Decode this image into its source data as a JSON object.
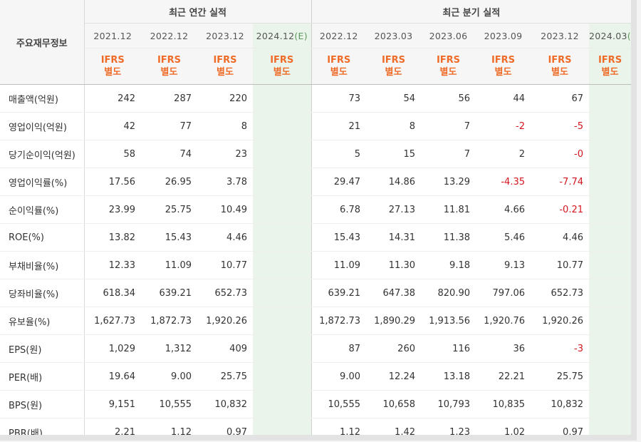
{
  "header": {
    "row_label": "주요재무정보",
    "annual_group": "최근 연간 실적",
    "quarter_group": "최근 분기 실적",
    "annual_periods": [
      {
        "label": "2021.12",
        "est": ""
      },
      {
        "label": "2022.12",
        "est": ""
      },
      {
        "label": "2023.12",
        "est": ""
      },
      {
        "label": "2024.12",
        "est": "(E)"
      }
    ],
    "quarter_periods": [
      {
        "label": "2022.12",
        "est": ""
      },
      {
        "label": "2023.03",
        "est": ""
      },
      {
        "label": "2023.06",
        "est": ""
      },
      {
        "label": "2023.09",
        "est": ""
      },
      {
        "label": "2023.12",
        "est": ""
      },
      {
        "label": "2024.03",
        "est": "(E"
      }
    ],
    "ifrs_line1": "IFRS",
    "ifrs_line2": "별도"
  },
  "rows": [
    {
      "label": "매출액(억원)",
      "annual": [
        "242",
        "287",
        "220",
        ""
      ],
      "quarter": [
        "73",
        "54",
        "56",
        "44",
        "67",
        ""
      ]
    },
    {
      "label": "영업이익(억원)",
      "annual": [
        "42",
        "77",
        "8",
        ""
      ],
      "quarter": [
        "21",
        "8",
        "7",
        "-2",
        "-5",
        ""
      ]
    },
    {
      "label": "당기순이익(억원)",
      "annual": [
        "58",
        "74",
        "23",
        ""
      ],
      "quarter": [
        "5",
        "15",
        "7",
        "2",
        "-0",
        ""
      ]
    },
    {
      "label": "영업이익률(%)",
      "annual": [
        "17.56",
        "26.95",
        "3.78",
        ""
      ],
      "quarter": [
        "29.47",
        "14.86",
        "13.29",
        "-4.35",
        "-7.74",
        ""
      ]
    },
    {
      "label": "순이익률(%)",
      "annual": [
        "23.99",
        "25.75",
        "10.49",
        ""
      ],
      "quarter": [
        "6.78",
        "27.13",
        "11.81",
        "4.66",
        "-0.21",
        ""
      ]
    },
    {
      "label": "ROE(%)",
      "annual": [
        "13.82",
        "15.43",
        "4.46",
        ""
      ],
      "quarter": [
        "15.43",
        "14.31",
        "11.38",
        "5.46",
        "4.46",
        ""
      ]
    },
    {
      "label": "부채비율(%)",
      "annual": [
        "12.33",
        "11.09",
        "10.77",
        ""
      ],
      "quarter": [
        "11.09",
        "11.30",
        "9.18",
        "9.13",
        "10.77",
        ""
      ]
    },
    {
      "label": "당좌비율(%)",
      "annual": [
        "618.34",
        "639.21",
        "652.73",
        ""
      ],
      "quarter": [
        "639.21",
        "647.38",
        "820.90",
        "797.06",
        "652.73",
        ""
      ]
    },
    {
      "label": "유보율(%)",
      "annual": [
        "1,627.73",
        "1,872.73",
        "1,920.26",
        ""
      ],
      "quarter": [
        "1,872.73",
        "1,890.29",
        "1,913.56",
        "1,920.76",
        "1,920.26",
        ""
      ]
    },
    {
      "label": "EPS(원)",
      "annual": [
        "1,029",
        "1,312",
        "409",
        ""
      ],
      "quarter": [
        "87",
        "260",
        "116",
        "36",
        "-3",
        ""
      ]
    },
    {
      "label": "PER(배)",
      "annual": [
        "19.64",
        "9.00",
        "25.75",
        ""
      ],
      "quarter": [
        "9.00",
        "12.24",
        "13.18",
        "22.21",
        "25.75",
        ""
      ]
    },
    {
      "label": "BPS(원)",
      "annual": [
        "9,151",
        "10,555",
        "10,832",
        ""
      ],
      "quarter": [
        "10,555",
        "10,658",
        "10,793",
        "10,835",
        "10,832",
        ""
      ]
    },
    {
      "label": "PBR(배)",
      "annual": [
        "2.21",
        "1.12",
        "0.97",
        ""
      ],
      "quarter": [
        "1.12",
        "1.42",
        "1.23",
        "1.02",
        "0.97",
        ""
      ]
    }
  ],
  "colors": {
    "ifrs": "#ee6b28",
    "negative": "#d4141e",
    "estimate_bg": "#eef6ee"
  }
}
